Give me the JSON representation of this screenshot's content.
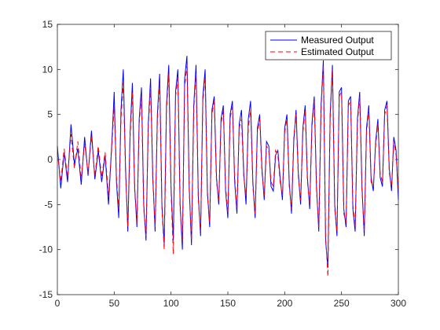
{
  "chart_data": {
    "type": "line",
    "title": "",
    "xlabel": "",
    "ylabel": "",
    "xlim": [
      0,
      300
    ],
    "ylim": [
      -15,
      15
    ],
    "x_ticks": [
      0,
      50,
      100,
      150,
      200,
      250,
      300
    ],
    "y_ticks": [
      -15,
      -10,
      -5,
      0,
      5,
      10,
      15
    ],
    "grid": false,
    "legend_position": "top-right",
    "series": [
      {
        "name": "Measured Output",
        "color": "#0000ff",
        "style": "solid",
        "x": [
          0,
          3,
          6,
          9,
          12,
          15,
          18,
          21,
          24,
          27,
          30,
          33,
          36,
          39,
          42,
          45,
          48,
          50,
          52,
          54,
          56,
          58,
          60,
          62,
          64,
          66,
          68,
          70,
          72,
          74,
          76,
          78,
          80,
          82,
          84,
          86,
          88,
          90,
          92,
          94,
          96,
          98,
          100,
          102,
          104,
          106,
          108,
          110,
          112,
          114,
          116,
          118,
          120,
          122,
          124,
          126,
          128,
          130,
          132,
          134,
          136,
          138,
          140,
          142,
          144,
          146,
          148,
          150,
          152,
          154,
          156,
          158,
          160,
          162,
          164,
          166,
          168,
          170,
          172,
          174,
          176,
          178,
          180,
          182,
          184,
          186,
          188,
          190,
          192,
          194,
          196,
          198,
          200,
          202,
          204,
          206,
          208,
          210,
          212,
          214,
          216,
          218,
          220,
          222,
          224,
          226,
          228,
          230,
          232,
          234,
          236,
          238,
          240,
          242,
          244,
          246,
          248,
          250,
          252,
          254,
          256,
          258,
          260,
          262,
          264,
          266,
          268,
          270,
          272,
          274,
          276,
          278,
          280,
          282,
          284,
          286,
          288,
          290,
          292,
          294,
          296,
          298,
          300
        ],
        "y": [
          1.5,
          -3.2,
          0.8,
          -2.5,
          3.9,
          -0.5,
          1.2,
          -2.8,
          2.5,
          -1.8,
          3.2,
          -2.2,
          1.0,
          -2.5,
          0.5,
          -5.0,
          2.0,
          7.5,
          -2.5,
          -6.5,
          5.5,
          10.0,
          -1.0,
          -8.0,
          3.0,
          8.5,
          -3.0,
          -7.5,
          4.5,
          8.0,
          -5.0,
          -9.0,
          4.0,
          9.0,
          -2.0,
          -8.0,
          5.0,
          9.5,
          -5.0,
          -9.5,
          6.0,
          10.5,
          -3.0,
          -9.0,
          7.5,
          10.0,
          -5.0,
          -10.0,
          9.0,
          11.5,
          -3.0,
          -9.5,
          6.0,
          10.5,
          -4.0,
          -8.5,
          7.0,
          10.0,
          -3.5,
          -7.5,
          5.5,
          7.0,
          -2.0,
          -5.0,
          4.5,
          6.0,
          -3.5,
          -6.5,
          5.0,
          6.5,
          -2.5,
          -6.0,
          4.0,
          5.5,
          -1.5,
          -5.0,
          4.5,
          6.5,
          -2.5,
          -6.5,
          3.5,
          5.0,
          -1.0,
          -4.5,
          2.0,
          1.5,
          -3.0,
          -3.5,
          0.5,
          1.0,
          -2.0,
          -4.5,
          3.5,
          5.0,
          -2.5,
          -6.0,
          2.0,
          5.5,
          -1.5,
          -5.0,
          3.5,
          6.0,
          -2.0,
          -5.5,
          4.0,
          7.0,
          -3.0,
          -8.0,
          6.0,
          11.0,
          -9.0,
          -12.0,
          5.0,
          10.5,
          -5.0,
          -8.5,
          7.5,
          8.0,
          -5.5,
          -7.5,
          6.5,
          7.0,
          -5.5,
          -8.0,
          4.5,
          7.5,
          -3.0,
          -8.5,
          3.5,
          6.0,
          -2.0,
          -3.5,
          2.0,
          4.5,
          -2.0,
          -3.0,
          5.5,
          6.5,
          -1.0,
          -3.5,
          2.5,
          1.0,
          -4.5
        ]
      },
      {
        "name": "Estimated Output",
        "color": "#ff0000",
        "style": "dashed",
        "x": [
          0,
          3,
          6,
          9,
          12,
          15,
          18,
          21,
          24,
          27,
          30,
          33,
          36,
          39,
          42,
          45,
          48,
          50,
          52,
          54,
          56,
          58,
          60,
          62,
          64,
          66,
          68,
          70,
          72,
          74,
          76,
          78,
          80,
          82,
          84,
          86,
          88,
          90,
          92,
          94,
          96,
          98,
          100,
          102,
          104,
          106,
          108,
          110,
          112,
          114,
          116,
          118,
          120,
          122,
          124,
          126,
          128,
          130,
          132,
          134,
          136,
          138,
          140,
          142,
          144,
          146,
          148,
          150,
          152,
          154,
          156,
          158,
          160,
          162,
          164,
          166,
          168,
          170,
          172,
          174,
          176,
          178,
          180,
          182,
          184,
          186,
          188,
          190,
          192,
          194,
          196,
          198,
          200,
          202,
          204,
          206,
          208,
          210,
          212,
          214,
          216,
          218,
          220,
          222,
          224,
          226,
          228,
          230,
          232,
          234,
          236,
          238,
          240,
          242,
          244,
          246,
          248,
          250,
          252,
          254,
          256,
          258,
          260,
          262,
          264,
          266,
          268,
          270,
          272,
          274,
          276,
          278,
          280,
          282,
          284,
          286,
          288,
          290,
          292,
          294,
          296,
          298,
          300
        ],
        "y": [
          0.8,
          -2.5,
          1.2,
          -2.0,
          2.8,
          -1.0,
          2.0,
          -2.2,
          1.8,
          -1.5,
          2.5,
          -1.8,
          1.5,
          -2.0,
          0.8,
          -4.0,
          1.5,
          6.0,
          -2.0,
          -5.5,
          4.5,
          8.5,
          -1.5,
          -7.5,
          2.5,
          7.5,
          -3.5,
          -7.0,
          4.0,
          7.0,
          -5.5,
          -8.5,
          3.5,
          8.0,
          -2.5,
          -7.5,
          4.5,
          8.5,
          -5.5,
          -10.0,
          5.5,
          9.5,
          -3.5,
          -10.5,
          7.0,
          9.0,
          -5.5,
          -9.0,
          8.0,
          10.5,
          -3.5,
          -9.0,
          5.5,
          9.5,
          -4.5,
          -8.0,
          6.5,
          9.0,
          -4.0,
          -7.0,
          5.0,
          6.5,
          -2.5,
          -4.5,
          4.0,
          5.5,
          -3.0,
          -6.0,
          4.5,
          6.0,
          -2.0,
          -5.5,
          3.5,
          4.5,
          -2.0,
          -4.0,
          3.5,
          5.5,
          -3.0,
          -6.0,
          3.0,
          4.5,
          -1.5,
          -4.0,
          1.5,
          1.0,
          -2.5,
          -3.0,
          1.0,
          0.5,
          -2.5,
          -4.0,
          3.0,
          4.5,
          -3.0,
          -5.5,
          2.5,
          5.0,
          -2.0,
          -4.5,
          3.0,
          5.5,
          -2.5,
          -5.0,
          3.5,
          6.5,
          -3.5,
          -7.5,
          5.5,
          10.5,
          -8.5,
          -13.0,
          4.5,
          10.0,
          -5.5,
          -8.0,
          7.0,
          7.5,
          -6.0,
          -7.0,
          6.0,
          6.5,
          -5.0,
          -7.5,
          4.0,
          7.0,
          -3.5,
          -8.0,
          3.0,
          5.5,
          -2.5,
          -3.0,
          1.5,
          4.0,
          -1.5,
          -2.5,
          5.0,
          6.0,
          -1.5,
          -3.0,
          2.0,
          0.5,
          -3.5
        ]
      }
    ]
  }
}
